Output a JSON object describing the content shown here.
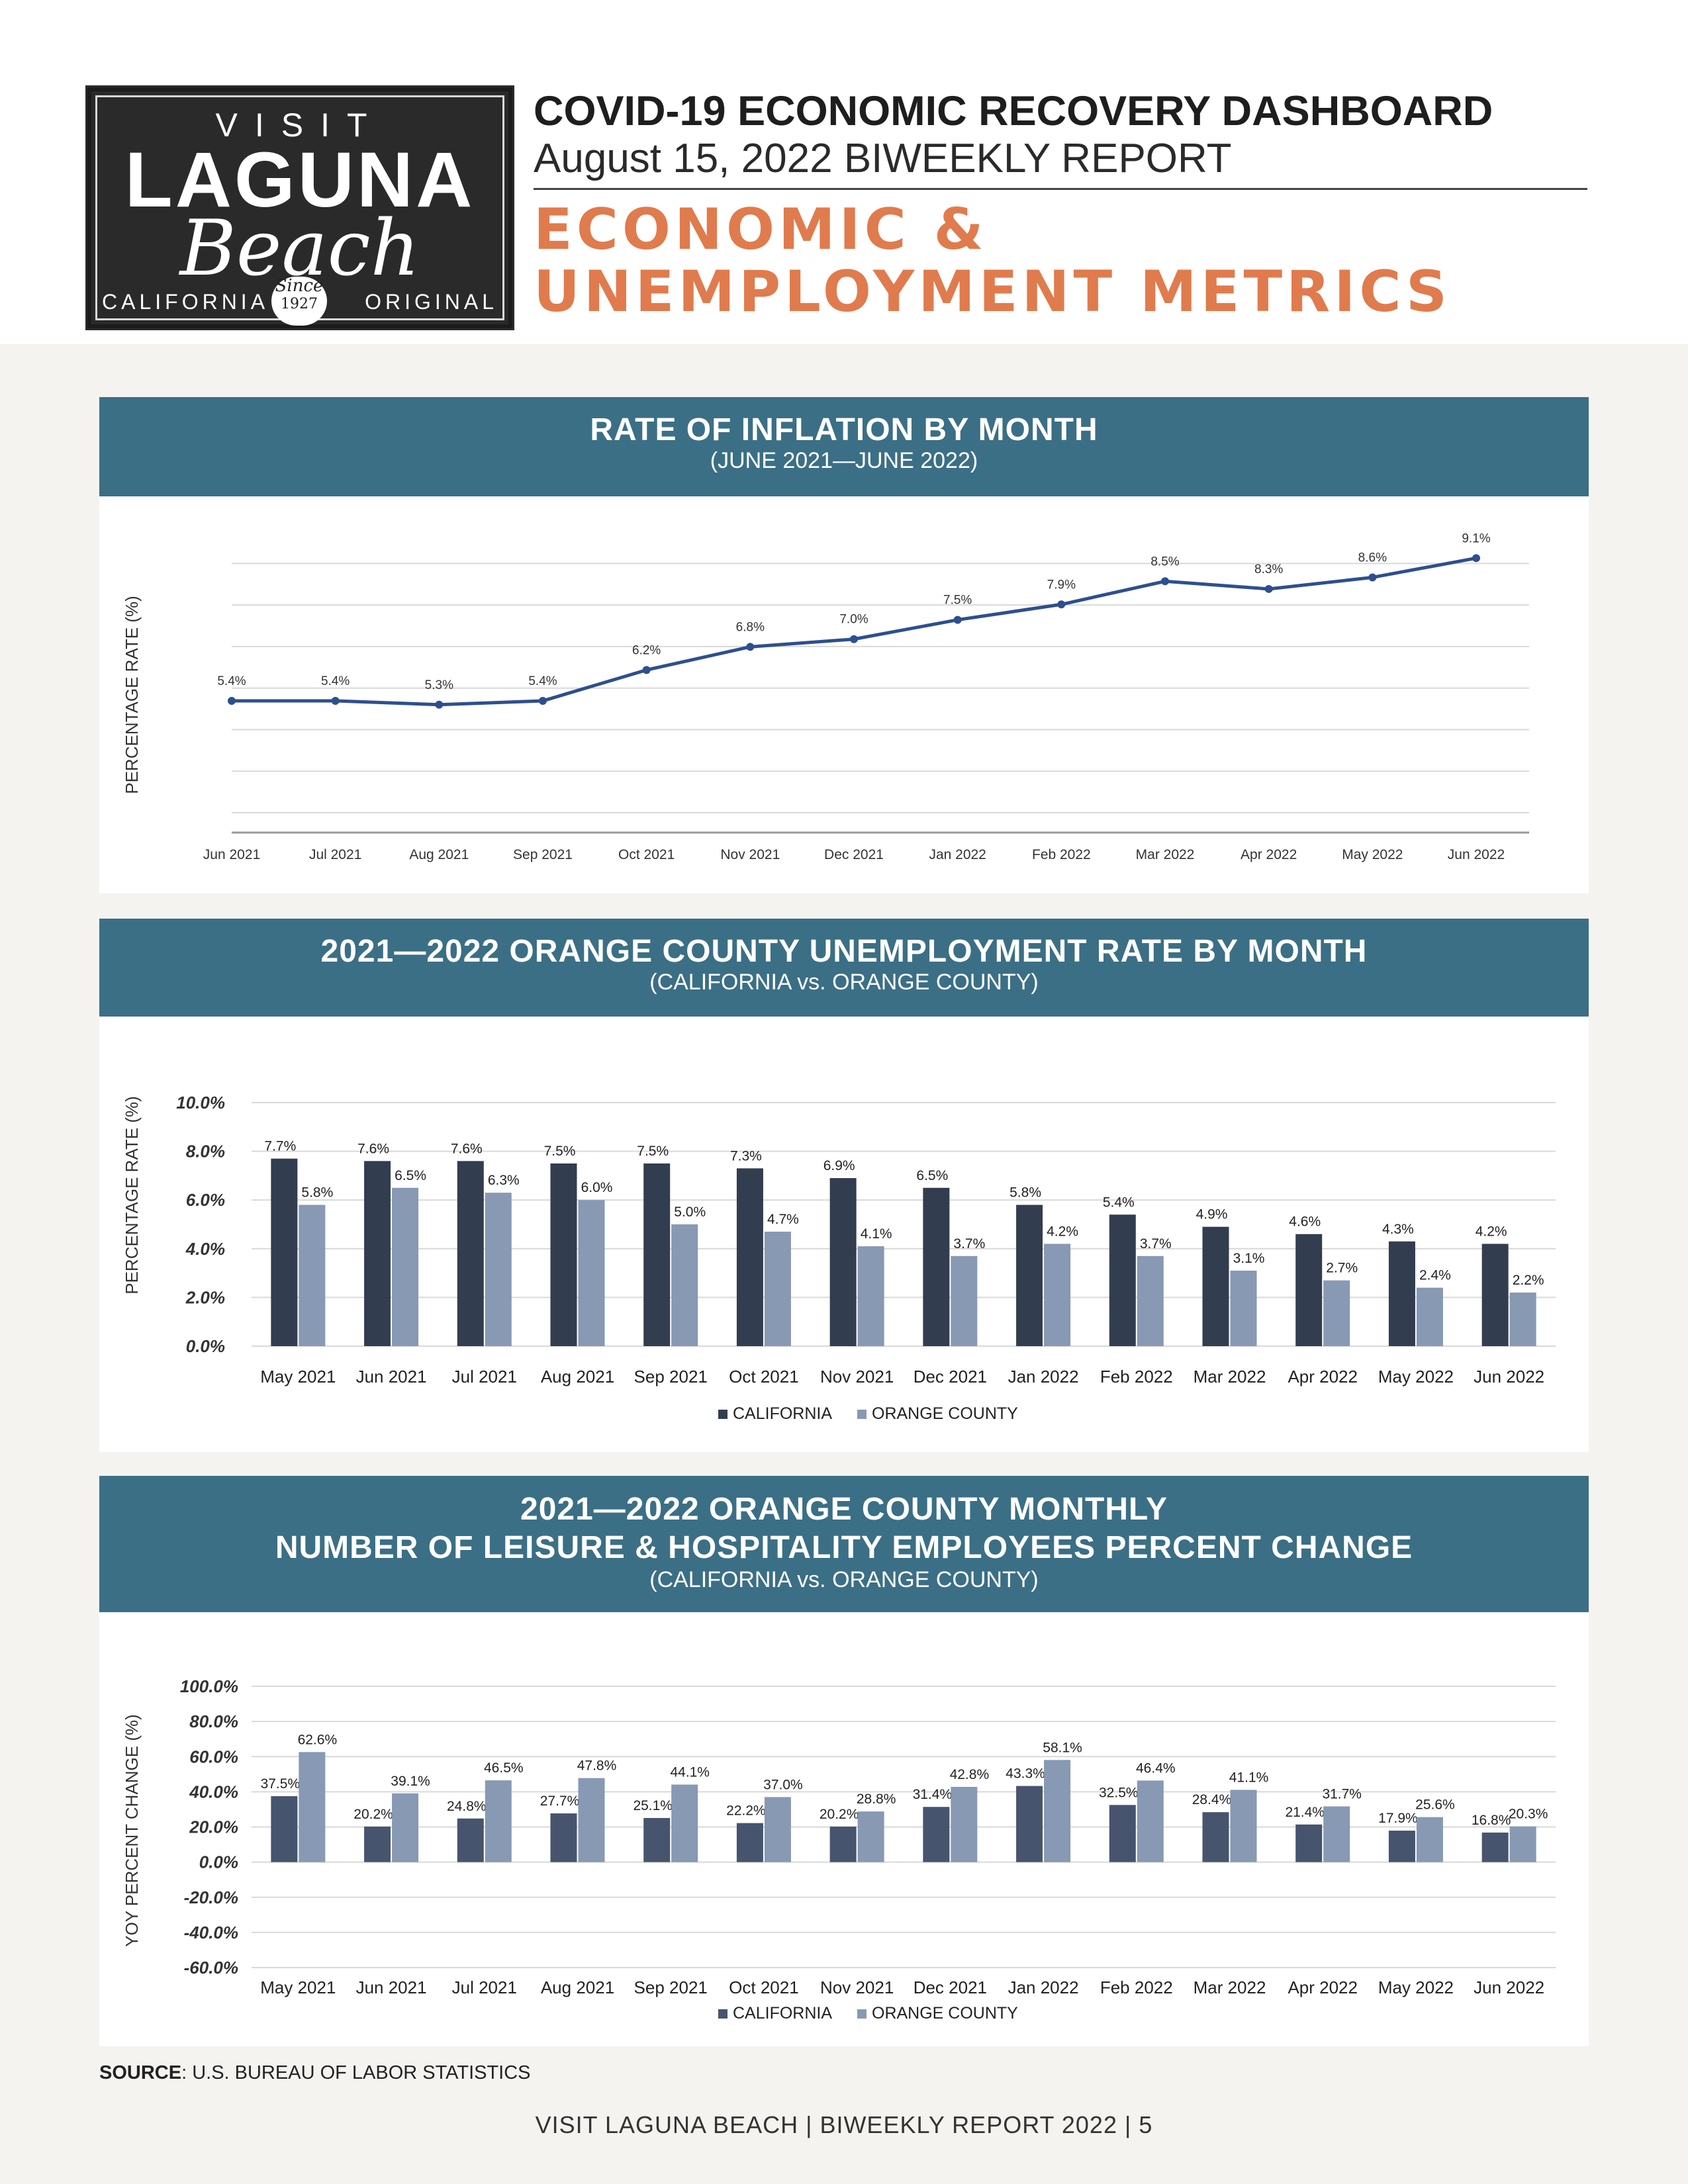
{
  "header": {
    "logo": {
      "visit": "VISIT",
      "laguna": "LAGUNA",
      "beach": "Beach",
      "california": "CALIFORNIA",
      "original": "ORIGINAL",
      "since": "Since",
      "year": "1927"
    },
    "title": "COVID-19 ECONOMIC RECOVERY DASHBOARD",
    "subtitle": "August 15, 2022 BIWEEKLY REPORT",
    "section_line1": "ECONOMIC &",
    "section_line2": "UNEMPLOYMENT METRICS"
  },
  "chart_data": [
    {
      "type": "line",
      "title": "RATE OF INFLATION BY MONTH",
      "subtitle": "(JUNE 2021—JUNE 2022)",
      "ylabel": "PERCENTAGE RATE (%)",
      "xlabel": "",
      "categories": [
        "Jun 2021",
        "Jul 2021",
        "Aug 2021",
        "Sep 2021",
        "Oct 2021",
        "Nov 2021",
        "Dec 2021",
        "Jan 2022",
        "Feb 2022",
        "Mar 2022",
        "Apr 2022",
        "May 2022",
        "Jun 2022"
      ],
      "values": [
        5.4,
        5.4,
        5.3,
        5.4,
        6.2,
        6.8,
        7.0,
        7.5,
        7.9,
        8.5,
        8.3,
        8.6,
        9.1
      ],
      "data_labels": [
        "5.4%",
        "5.4%",
        "5.3%",
        "5.4%",
        "6.2%",
        "6.8%",
        "7.0%",
        "7.5%",
        "7.9%",
        "8.5%",
        "8.3%",
        "8.6%",
        "9.1%"
      ],
      "ylim": [
        2.5,
        9.5
      ],
      "grid": true,
      "color": "#2e4f8f"
    },
    {
      "type": "bar",
      "title": "2021—2022 ORANGE COUNTY UNEMPLOYMENT RATE BY MONTH",
      "subtitle": "(CALIFORNIA vs. ORANGE COUNTY)",
      "ylabel": "PERCENTAGE RATE (%)",
      "xlabel": "",
      "categories": [
        "May 2021",
        "Jun 2021",
        "Jul 2021",
        "Aug 2021",
        "Sep 2021",
        "Oct 2021",
        "Nov 2021",
        "Dec 2021",
        "Jan 2022",
        "Feb 2022",
        "Mar 2022",
        "Apr 2022",
        "May 2022",
        "Jun 2022"
      ],
      "series": [
        {
          "name": "CALIFORNIA",
          "color": "#323d4f",
          "values": [
            7.7,
            7.6,
            7.6,
            7.5,
            7.5,
            7.3,
            6.9,
            6.5,
            5.8,
            5.4,
            4.9,
            4.6,
            4.3,
            4.2
          ],
          "labels": [
            "7.7%",
            "7.6%",
            "7.6%",
            "7.5%",
            "7.5%",
            "7.3%",
            "6.9%",
            "6.5%",
            "5.8%",
            "5.4%",
            "4.9%",
            "4.6%",
            "4.3%",
            "4.2%"
          ]
        },
        {
          "name": "ORANGE COUNTY",
          "color": "#8799b3",
          "values": [
            5.8,
            6.5,
            6.3,
            6.0,
            5.0,
            4.7,
            4.1,
            3.7,
            4.2,
            3.7,
            3.1,
            2.7,
            2.4,
            2.2
          ],
          "labels": [
            "5.8%",
            "6.5%",
            "6.3%",
            "6.0%",
            "5.0%",
            "4.7%",
            "4.1%",
            "3.7%",
            "4.2%",
            "3.7%",
            "3.1%",
            "2.7%",
            "2.4%",
            "2.2%"
          ]
        }
      ],
      "yticks": [
        "10.0%",
        "8.0%",
        "6.0%",
        "4.0%",
        "2.0%",
        "0.0%"
      ],
      "ylim": [
        0,
        10
      ],
      "grid": true,
      "legend": "bottom"
    },
    {
      "type": "bar",
      "title_line1": "2021—2022 ORANGE COUNTY MONTHLY",
      "title_line2": "NUMBER OF LEISURE & HOSPITALITY EMPLOYEES PERCENT CHANGE",
      "subtitle": "(CALIFORNIA vs. ORANGE COUNTY)",
      "ylabel": "YOY PERCENT CHANGE (%)",
      "xlabel": "",
      "categories": [
        "May 2021",
        "Jun 2021",
        "Jul 2021",
        "Aug 2021",
        "Sep 2021",
        "Oct 2021",
        "Nov 2021",
        "Dec 2021",
        "Jan 2022",
        "Feb 2022",
        "Mar 2022",
        "Apr 2022",
        "May 2022",
        "Jun 2022"
      ],
      "series": [
        {
          "name": "CALIFORNIA",
          "color": "#46546e",
          "values": [
            37.5,
            20.2,
            24.8,
            27.7,
            25.1,
            22.2,
            20.2,
            31.4,
            43.3,
            32.5,
            28.4,
            21.4,
            17.9,
            16.8
          ],
          "labels": [
            "37.5%",
            "20.2%",
            "24.8%",
            "27.7%",
            "25.1%",
            "22.2%",
            "20.2%",
            "31.4%",
            "43.3%",
            "32.5%",
            "28.4%",
            "21.4%",
            "17.9%",
            "16.8%"
          ]
        },
        {
          "name": "ORANGE COUNTY",
          "color": "#8799b3",
          "values": [
            62.6,
            39.1,
            46.5,
            47.8,
            44.1,
            37.0,
            28.8,
            42.8,
            58.1,
            46.4,
            41.1,
            31.7,
            25.6,
            20.3
          ],
          "labels": [
            "62.6%",
            "39.1%",
            "46.5%",
            "47.8%",
            "44.1%",
            "37.0%",
            "28.8%",
            "42.8%",
            "58.1%",
            "46.4%",
            "41.1%",
            "31.7%",
            "25.6%",
            "20.3%"
          ]
        }
      ],
      "yticks": [
        "100.0%",
        "80.0%",
        "60.0%",
        "40.0%",
        "20.0%",
        "0.0%",
        "-20.0%",
        "-40.0%",
        "-60.0%"
      ],
      "ylim": [
        -60,
        100
      ],
      "grid": true,
      "legend": "bottom"
    }
  ],
  "source": {
    "label": "SOURCE",
    "text": ": U.S. BUREAU OF LABOR STATISTICS"
  },
  "footer": "VISIT LAGUNA BEACH  |  BIWEEKLY REPORT 2022  |  5"
}
